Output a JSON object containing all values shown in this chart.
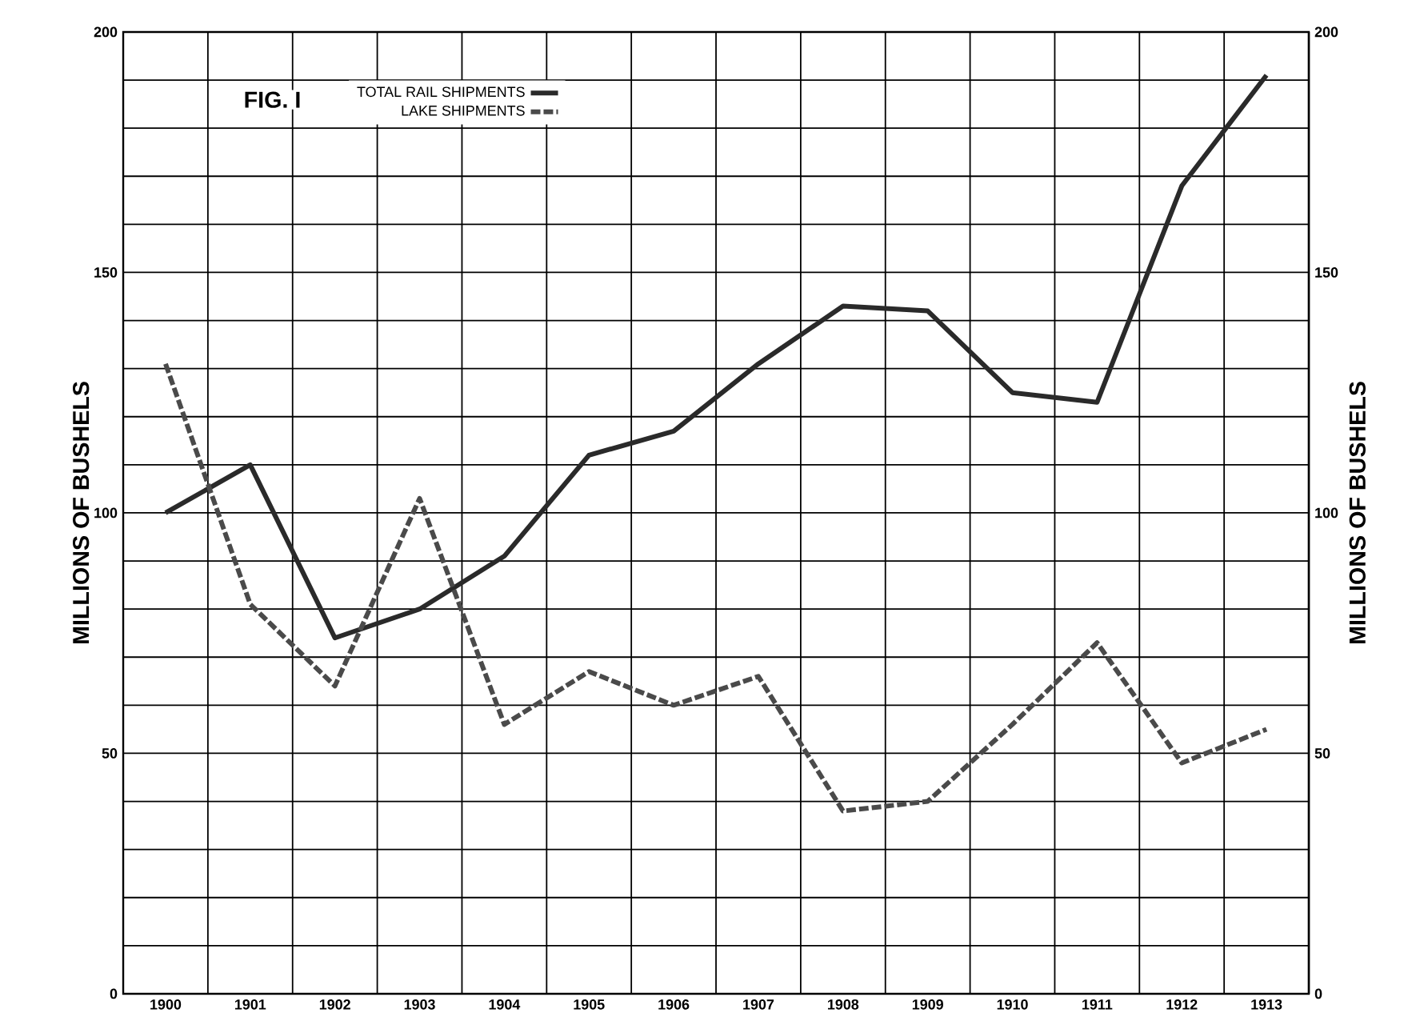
{
  "chart_data": {
    "type": "line",
    "title": "FIG. I",
    "categories": [
      "1900",
      "1901",
      "1902",
      "1903",
      "1904",
      "1905",
      "1906",
      "1907",
      "1908",
      "1909",
      "1910",
      "1911",
      "1912",
      "1913"
    ],
    "series": [
      {
        "name": "TOTAL RAIL SHIPMENTS",
        "color": "#2a2a2a",
        "line_style": "solid",
        "values": [
          100,
          110,
          74,
          80,
          91,
          112,
          117,
          131,
          143,
          142,
          125,
          123,
          168,
          191
        ]
      },
      {
        "name": "LAKE SHIPMENTS",
        "color": "#4a4a4a",
        "line_style": "dashed",
        "values": [
          131,
          81,
          64,
          103,
          56,
          67,
          60,
          66,
          38,
          40,
          56,
          73,
          48,
          55
        ]
      }
    ],
    "ylabel": "MILLIONS OF BUSHELS",
    "y2label": "MILLIONS OF BUSHELS",
    "ylim": [
      0,
      200
    ],
    "yticks": [
      0,
      50,
      100,
      150,
      200
    ],
    "y2lim": [
      0,
      200
    ],
    "y2ticks": [
      0,
      50,
      100,
      150,
      200
    ],
    "grid": true,
    "legend": "top left"
  }
}
